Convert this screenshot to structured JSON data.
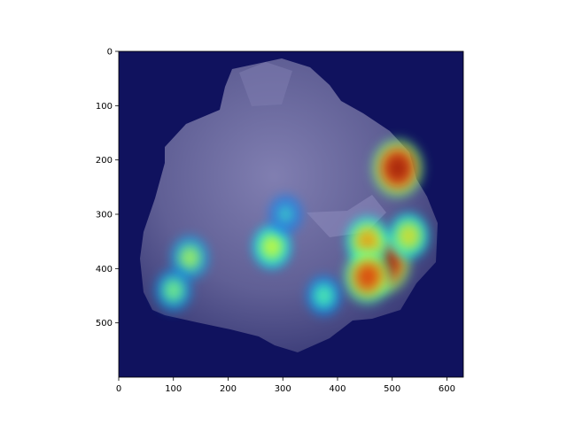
{
  "chart_data": {
    "type": "heatmap",
    "description_of_image": "",
    "title": "",
    "xlabel": "",
    "ylabel": "",
    "xlim": [
      0,
      630
    ],
    "ylim": [
      600,
      0
    ],
    "x_ticks": [
      0,
      100,
      200,
      300,
      400,
      500,
      600
    ],
    "y_ticks": [
      0,
      100,
      200,
      300,
      400,
      500
    ],
    "x_tick_labels": [
      "0",
      "100",
      "200",
      "300",
      "400",
      "500",
      "600"
    ],
    "y_tick_labels": [
      "0",
      "100",
      "200",
      "300",
      "400",
      "500"
    ],
    "colormap": "jet",
    "background_color": "#10125e",
    "hotspots": [
      {
        "x": 510,
        "y": 215,
        "intensity": 0.95
      },
      {
        "x": 485,
        "y": 390,
        "intensity": 1.0
      },
      {
        "x": 455,
        "y": 350,
        "intensity": 0.65
      },
      {
        "x": 455,
        "y": 415,
        "intensity": 0.8
      },
      {
        "x": 530,
        "y": 340,
        "intensity": 0.55
      },
      {
        "x": 280,
        "y": 360,
        "intensity": 0.5
      },
      {
        "x": 130,
        "y": 380,
        "intensity": 0.45
      },
      {
        "x": 100,
        "y": 440,
        "intensity": 0.4
      },
      {
        "x": 375,
        "y": 450,
        "intensity": 0.35
      },
      {
        "x": 305,
        "y": 300,
        "intensity": 0.3
      }
    ]
  }
}
